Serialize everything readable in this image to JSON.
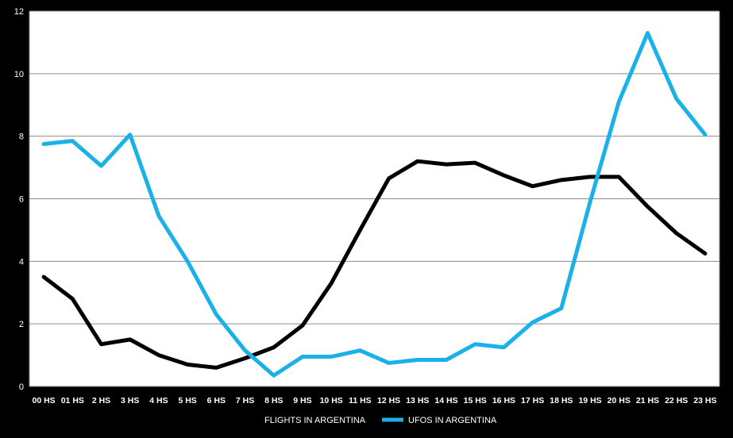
{
  "chart_data": {
    "type": "line",
    "title": "",
    "xlabel": "",
    "ylabel": "",
    "ylim": [
      0,
      12
    ],
    "yticks": [
      0,
      2,
      4,
      6,
      8,
      10,
      12
    ],
    "grid": true,
    "legend_position": "bottom",
    "background": "#000000",
    "categories": [
      "00 HS",
      "01 HS",
      "2 HS",
      "3 HS",
      "4 HS",
      "5 HS",
      "6 HS",
      "7 HS",
      "8 HS",
      "9 HS",
      "10 HS",
      "11 HS",
      "12 HS",
      "13 HS",
      "14 HS",
      "15 HS",
      "16 HS",
      "17 HS",
      "18 HS",
      "19 HS",
      "20 HS",
      "21 HS",
      "22 HS",
      "23 HS"
    ],
    "series": [
      {
        "name": "FLIGHTS IN ARGENTINA",
        "color": "#000000",
        "values": [
          3.5,
          2.8,
          1.35,
          1.5,
          1.0,
          0.7,
          0.6,
          0.9,
          1.25,
          1.95,
          3.3,
          5.0,
          6.65,
          7.2,
          7.1,
          7.15,
          6.75,
          6.4,
          6.6,
          6.7,
          6.7,
          5.75,
          4.9,
          4.25
        ]
      },
      {
        "name": "UFOS IN ARGENTINA",
        "color": "#1ab0e8",
        "values": [
          7.75,
          7.85,
          7.05,
          8.05,
          5.45,
          4.0,
          2.3,
          1.15,
          0.35,
          0.95,
          0.95,
          1.15,
          0.75,
          0.85,
          0.85,
          1.35,
          1.25,
          2.05,
          2.5,
          5.9,
          9.1,
          11.3,
          9.2,
          8.05
        ]
      }
    ]
  }
}
